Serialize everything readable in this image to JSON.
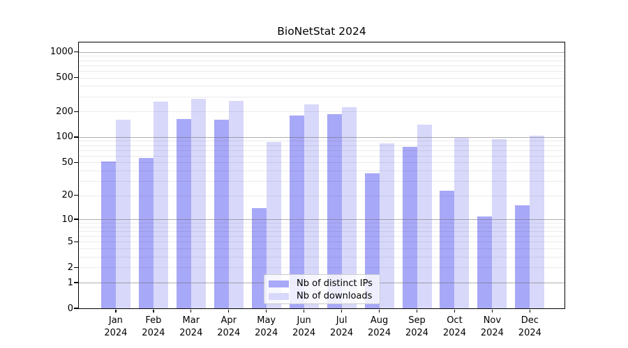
{
  "chart_data": {
    "type": "bar",
    "title": "BioNetStat 2024",
    "categories": [
      "Jan 2024",
      "Feb 2024",
      "Mar 2024",
      "Apr 2024",
      "May 2024",
      "Jun 2024",
      "Jul 2024",
      "Aug 2024",
      "Sep 2024",
      "Oct 2024",
      "Nov 2024",
      "Dec 2024"
    ],
    "series": [
      {
        "name": "Nb of distinct IPs",
        "color": "#a8a8f8",
        "values": [
          51,
          57,
          163,
          161,
          14,
          180,
          185,
          37,
          77,
          23,
          11,
          15
        ]
      },
      {
        "name": "Nb of downloads",
        "color": "#d8d8fa",
        "values": [
          160,
          262,
          283,
          268,
          87,
          242,
          225,
          84,
          140,
          98,
          94,
          104
        ]
      }
    ],
    "xlabel": "",
    "ylabel": "",
    "yscale": "log1p",
    "yticks": [
      0,
      1,
      2,
      5,
      10,
      20,
      50,
      100,
      200,
      500,
      1000
    ],
    "ytick_labels": [
      "0",
      "1",
      "2",
      "5",
      "10",
      "20",
      "50",
      "100",
      "200",
      "500",
      "1000"
    ],
    "ylim": [
      0,
      1290
    ],
    "grid": "horizontal major at 1,10,100,1000 (gray) and minor at 2-9 per decade (light), drawn over bars",
    "legend_position": "inside lower center",
    "colors": {
      "bar_distinct_ips": "#a8a8f8",
      "bar_downloads": "#d8d8fa",
      "axis": "#000000",
      "major_grid": "#6e6e6e",
      "minor_grid": "#e8e8e8",
      "legend_border": "#cccccc",
      "background": "#ffffff"
    }
  }
}
